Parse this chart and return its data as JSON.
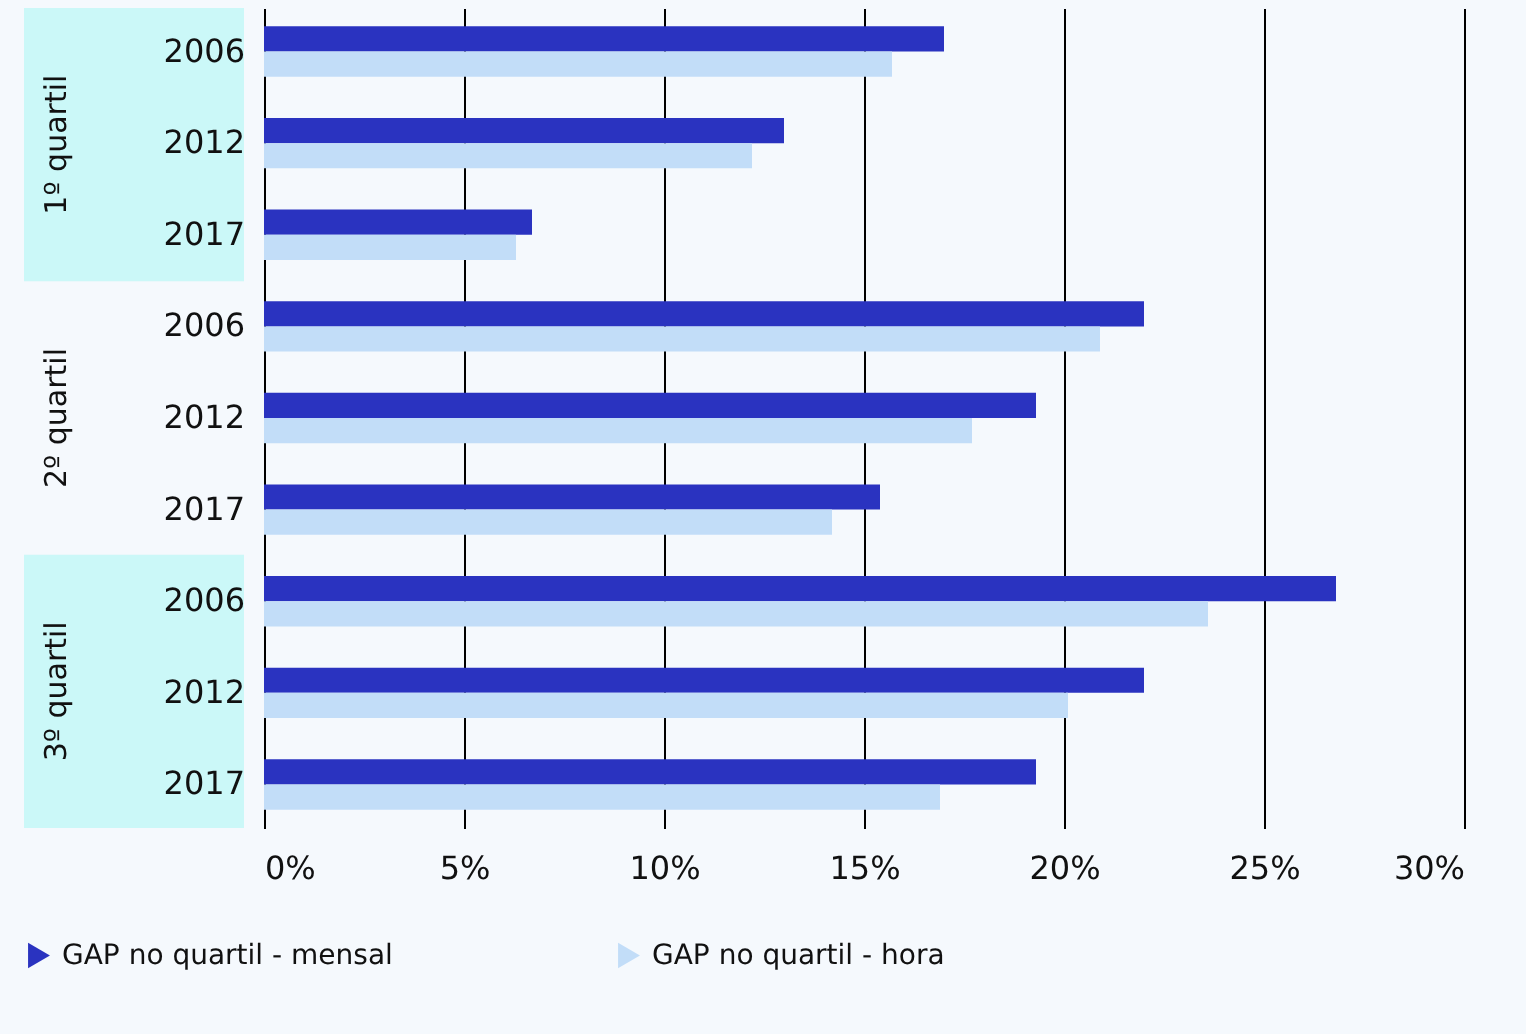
{
  "chart_data": {
    "type": "bar",
    "orientation": "horizontal",
    "categories": [
      "2006",
      "2012",
      "2017",
      "2006",
      "2012",
      "2017",
      "2006",
      "2012",
      "2017"
    ],
    "series": [
      {
        "name": "GAP no quartil - mensal",
        "color": "#2a33c0",
        "values": [
          17.0,
          13.0,
          6.7,
          22.0,
          19.3,
          15.4,
          26.8,
          22.0,
          19.3
        ]
      },
      {
        "name": "GAP no quartil - hora",
        "color": "#c2ddf8",
        "values": [
          15.7,
          12.2,
          6.3,
          20.9,
          17.7,
          14.2,
          23.6,
          20.1,
          16.9
        ]
      }
    ],
    "annotations": [
      "1º quartil",
      "2º quartil",
      "3º quartil"
    ],
    "xlim": [
      0,
      30
    ],
    "xticks": [
      {
        "value": 0,
        "label": "0%"
      },
      {
        "value": 5,
        "label": "5%"
      },
      {
        "value": 10,
        "label": "10%"
      },
      {
        "value": 15,
        "label": "15%"
      },
      {
        "value": 20,
        "label": "20%"
      },
      {
        "value": 25,
        "label": "25%"
      },
      {
        "value": 30,
        "label": "30%"
      }
    ],
    "grid": "x",
    "legend": "bottom"
  }
}
